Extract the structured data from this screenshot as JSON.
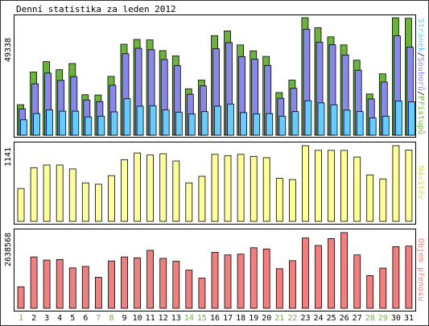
{
  "chart_data": {
    "type": "bar",
    "title": "Denní statistika za leden 2012",
    "categories": [
      "1",
      "2",
      "3",
      "4",
      "5",
      "6",
      "7",
      "8",
      "9",
      "10",
      "11",
      "12",
      "13",
      "14",
      "15",
      "16",
      "17",
      "18",
      "19",
      "20",
      "21",
      "22",
      "23",
      "24",
      "25",
      "26",
      "27",
      "28",
      "29",
      "30",
      "31"
    ],
    "weekend_days": [
      "1",
      "7",
      "8",
      "14",
      "15",
      "21",
      "22",
      "28",
      "29"
    ],
    "colors": {
      "pristupy": "#6cb33e",
      "soubory": "#8888e6",
      "stranky": "#66ccff",
      "navstevy": "#ffff99",
      "prenosy": "#f08080",
      "weekday_label": "#000000",
      "weekend_label": "#6cb33e"
    },
    "panels": [
      {
        "id": "hits",
        "ymax_label": "49338",
        "ymax": 49338,
        "legend": [
          {
            "text": "Stránek",
            "color": "#66ccff"
          },
          {
            "text": "/",
            "color": "#000000"
          },
          {
            "text": "Souborů",
            "color": "#8888e6"
          },
          {
            "text": "/",
            "color": "#000000"
          },
          {
            "text": "Přístupů",
            "color": "#6cb33e"
          }
        ],
        "series": [
          {
            "name": "Přístupů",
            "values": [
              12800,
              26500,
              30900,
              27500,
              30100,
              17000,
              16900,
              24700,
              38200,
              40200,
              40000,
              35500,
              33300,
              19500,
              23100,
              41800,
              43800,
              37900,
              35400,
              33100,
              17900,
              23100,
              49338,
              45100,
              41300,
              37900,
              31500,
              17300,
              25800,
              49300,
              49100
            ]
          },
          {
            "name": "Souborů",
            "values": [
              11100,
              21600,
              26100,
              23000,
              24600,
              14800,
              14100,
              21000,
              34200,
              36500,
              35900,
              31800,
              29200,
              17200,
              20700,
              36300,
              38900,
              33000,
              31900,
              29300,
              15500,
              19700,
              44500,
              39100,
              38000,
              33700,
              27300,
              15200,
              22300,
              41700,
              37000
            ]
          },
          {
            "name": "Stránek",
            "values": [
              6500,
              9100,
              10600,
              10100,
              10100,
              7700,
              8000,
              9800,
              15300,
              12200,
              12400,
              10600,
              9700,
              8900,
              9900,
              12200,
              13100,
              9500,
              9000,
              9100,
              8000,
              9900,
              14500,
              13600,
              12800,
              10500,
              9900,
              7300,
              8000,
              14400,
              14000
            ]
          }
        ]
      },
      {
        "id": "visits",
        "ymax_label": "1141",
        "ymax": 1141,
        "legend": [
          {
            "text": "Návštěv",
            "color": "#d8d860"
          }
        ],
        "series": [
          {
            "name": "Návštěv",
            "values": [
              495,
              810,
              850,
              850,
              790,
              580,
              560,
              690,
              930,
              1030,
              1000,
              1020,
              910,
              580,
              680,
              1010,
              990,
              1010,
              980,
              960,
              650,
              630,
              1141,
              1070,
              1070,
              1070,
              970,
              700,
              640,
              1141,
              1075
            ]
          }
        ]
      },
      {
        "id": "traffic",
        "ymax_label": "2638568",
        "ymax": 2638568,
        "legend": [
          {
            "text": "Objem přenosu",
            "color": "#f08080"
          }
        ],
        "series": [
          {
            "name": "Objem přenosu",
            "values": [
              750000,
              1790000,
              1680000,
              1700000,
              1410000,
              1460000,
              1080000,
              1650000,
              1790000,
              1760000,
              2020000,
              1740000,
              1640000,
              1330000,
              1050000,
              1950000,
              1860000,
              1890000,
              2110000,
              2070000,
              1380000,
              1660000,
              2450000,
              2190000,
              2430000,
              2638568,
              1860000,
              1140000,
              1400000,
              2150000,
              2170000
            ]
          }
        ]
      }
    ]
  }
}
